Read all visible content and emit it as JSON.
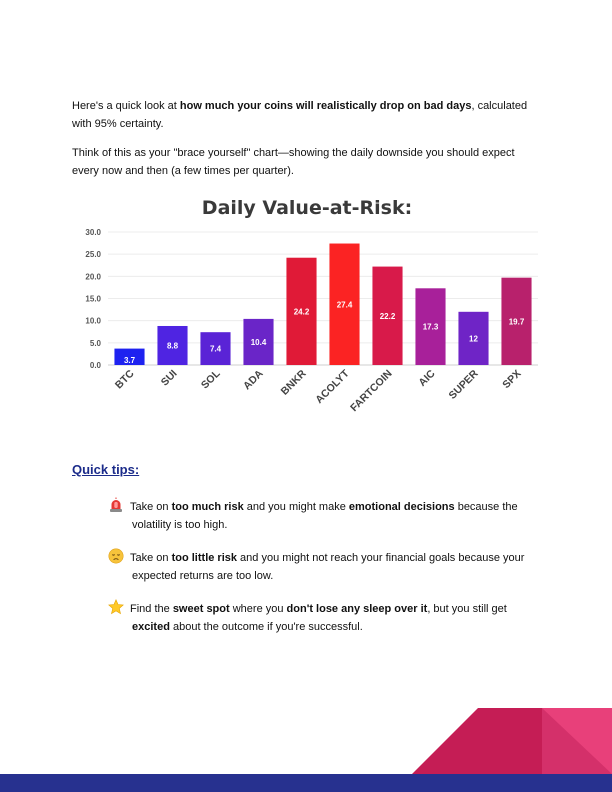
{
  "intro": {
    "p1_pre": "Here's a quick look at ",
    "p1_bold": "how much your coins will realistically drop on bad days",
    "p1_post": ", calculated with 95% certainty.",
    "p2": "Think of this as your \"brace yourself\" chart—showing the daily downside you should expect every now and then (a few times per quarter)."
  },
  "chart_data": {
    "type": "bar",
    "title": "Daily Value-at-Risk:",
    "xlabel": "",
    "ylabel": "",
    "categories": [
      "BTC",
      "SUI",
      "SOL",
      "ADA",
      "BNKR",
      "ACOLYT",
      "FARTCOIN",
      "AIC",
      "SUPER",
      "SPX"
    ],
    "values": [
      3.7,
      8.8,
      7.4,
      10.4,
      24.2,
      27.4,
      22.2,
      17.3,
      12,
      19.7
    ],
    "value_labels": [
      "3.7",
      "8.8",
      "7.4",
      "10.4",
      "24.2",
      "27.4",
      "22.2",
      "17.3",
      "12",
      "19.7"
    ],
    "colors": [
      "#1e22f0",
      "#4f24e2",
      "#5a23d6",
      "#6a25c8",
      "#e01a37",
      "#fb2323",
      "#d81a4a",
      "#a8209a",
      "#6f24c6",
      "#b8216c"
    ],
    "ylim": [
      0,
      30
    ],
    "yticks": [
      0,
      5,
      10,
      15,
      20,
      25,
      30
    ],
    "ytick_labels": [
      "0.0",
      "5.0",
      "10.0",
      "15.0",
      "20.0",
      "25.0",
      "30.0"
    ],
    "grid": true,
    "legend": "none"
  },
  "tips": {
    "heading": "Quick tips:",
    "items": [
      {
        "icon": "siren-icon",
        "a": "Take on ",
        "b": "too much risk",
        "c": " and you might make ",
        "d": "emotional decisions",
        "e": " because the",
        "line2_a": "volatility is too high.",
        "line2_b": "",
        "line2_c": ""
      },
      {
        "icon": "sad-face-icon",
        "a": "Take on ",
        "b": "too little risk",
        "c": " and you might not reach your financial goals because your",
        "d": "",
        "e": "",
        "line2_a": "expected returns are too low.",
        "line2_b": "",
        "line2_c": ""
      },
      {
        "icon": "star-icon",
        "a": "Find the ",
        "b": "sweet spot",
        "c": " where you ",
        "d": "don't lose any sleep over it",
        "e": ", but you still get",
        "line2_a": "",
        "line2_b": "excited",
        "line2_c": " about the outcome if you're successful."
      }
    ]
  },
  "theme": {
    "footer_color": "#27318f",
    "accent_pink": "#e8407a",
    "accent_red": "#c51d55"
  }
}
